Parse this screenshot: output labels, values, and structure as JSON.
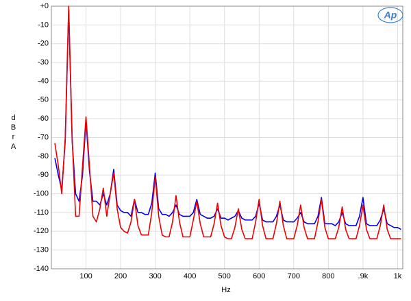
{
  "chart_data": {
    "type": "line",
    "logo": "Ap",
    "xlabel": "Hz",
    "ylabel": "dBr A",
    "xlim": [
      0,
      1015
    ],
    "ylim": [
      -140,
      0
    ],
    "xticks": [
      100,
      200,
      300,
      400,
      500,
      600,
      700,
      800,
      {
        "value": 900,
        "label": ".9k"
      },
      {
        "value": 1000,
        "label": "1k"
      }
    ],
    "yticks": [
      {
        "value": 0,
        "label": "+0"
      },
      -10,
      -20,
      -30,
      -40,
      -50,
      -60,
      -70,
      -80,
      -90,
      -100,
      -110,
      -120,
      -130,
      -140
    ],
    "grid": true,
    "x": [
      10,
      20,
      30,
      40,
      50,
      60,
      70,
      80,
      90,
      100,
      110,
      120,
      130,
      140,
      150,
      160,
      170,
      180,
      190,
      200,
      210,
      220,
      230,
      240,
      250,
      260,
      270,
      280,
      290,
      300,
      310,
      320,
      330,
      340,
      350,
      360,
      370,
      380,
      390,
      400,
      410,
      420,
      430,
      440,
      450,
      460,
      470,
      480,
      490,
      500,
      510,
      520,
      530,
      540,
      550,
      560,
      570,
      580,
      590,
      600,
      610,
      620,
      630,
      640,
      650,
      660,
      670,
      680,
      690,
      700,
      710,
      720,
      730,
      740,
      750,
      760,
      770,
      780,
      790,
      800,
      810,
      820,
      830,
      840,
      850,
      860,
      870,
      880,
      890,
      900,
      910,
      920,
      930,
      940,
      950,
      960,
      970,
      980,
      990,
      1000,
      1010
    ],
    "series": [
      {
        "color": "#0000ee",
        "values": [
          -81,
          -90,
          -98,
          -72,
          -2,
          -72,
          -100,
          -104,
          -90,
          -61,
          -88,
          -104,
          -104,
          -106,
          -100,
          -106,
          -100,
          -87,
          -106,
          -109,
          -110,
          -110,
          -112,
          -103,
          -110,
          -110,
          -111,
          -111,
          -105,
          -89,
          -108,
          -111,
          -111,
          -112,
          -110,
          -106,
          -111,
          -112,
          -112,
          -112,
          -110,
          -103,
          -111,
          -112,
          -113,
          -113,
          -112,
          -108,
          -113,
          -113,
          -114,
          -113,
          -112,
          -109,
          -113,
          -114,
          -114,
          -114,
          -112,
          -105,
          -114,
          -115,
          -115,
          -115,
          -112,
          -106,
          -114,
          -115,
          -115,
          -115,
          -113,
          -110,
          -115,
          -116,
          -116,
          -116,
          -112,
          -102,
          -116,
          -116,
          -116,
          -117,
          -115,
          -110,
          -116,
          -117,
          -117,
          -117,
          -112,
          -102,
          -116,
          -117,
          -117,
          -117,
          -114,
          -108,
          -116,
          -117,
          -118,
          -118,
          -119
        ]
      },
      {
        "color": "#ee0000",
        "values": [
          -73,
          -85,
          -100,
          -70,
          0,
          -70,
          -112,
          -112,
          -85,
          -59,
          -85,
          -112,
          -115,
          -108,
          -97,
          -112,
          -100,
          -89,
          -108,
          -118,
          -120,
          -121,
          -115,
          -103,
          -117,
          -122,
          -122,
          -122,
          -110,
          -91,
          -112,
          -122,
          -123,
          -123,
          -115,
          -101,
          -115,
          -123,
          -123,
          -123,
          -114,
          -104,
          -116,
          -123,
          -123,
          -123,
          -116,
          -105,
          -117,
          -123,
          -124,
          -124,
          -118,
          -108,
          -119,
          -124,
          -124,
          -124,
          -115,
          -103,
          -117,
          -124,
          -124,
          -124,
          -116,
          -104,
          -117,
          -124,
          -124,
          -124,
          -117,
          -106,
          -118,
          -124,
          -124,
          -124,
          -115,
          -103,
          -118,
          -124,
          -124,
          -124,
          -118,
          -107,
          -119,
          -124,
          -124,
          -124,
          -117,
          -106,
          -119,
          -124,
          -124,
          -124,
          -117,
          -106,
          -119,
          -124,
          -124,
          -124,
          -124
        ]
      }
    ]
  }
}
